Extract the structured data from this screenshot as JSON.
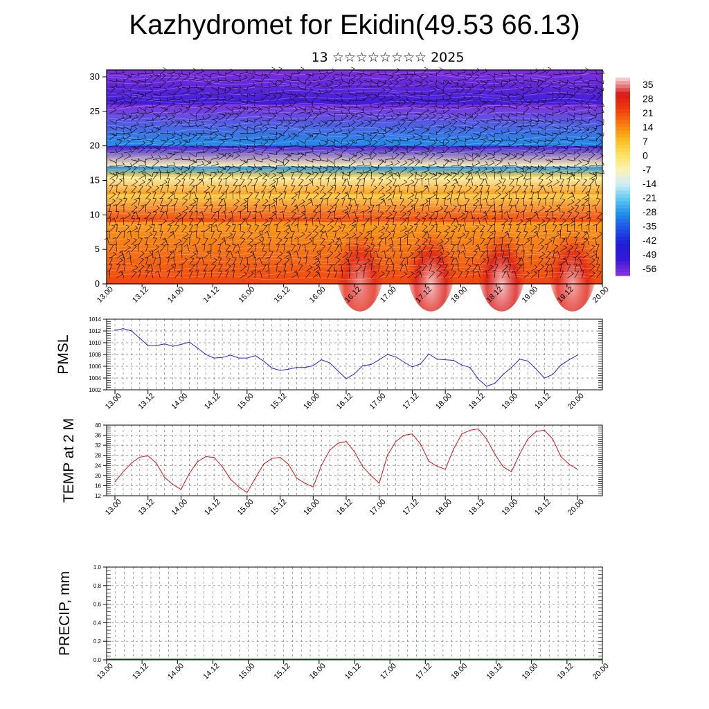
{
  "title": "Kazhydromet for Ekidin(49.53 66.13)",
  "subtitle": "13 ☆☆☆☆☆☆☆☆ 2025",
  "chart_data": [
    {
      "type": "heatmap",
      "title": "",
      "x_ticks": [
        "13.00",
        "13.12",
        "14.00",
        "14.12",
        "15.00",
        "15.12",
        "16.00",
        "16.12",
        "17.00",
        "17.12",
        "18.00",
        "18.12",
        "19.00",
        "19.12",
        "20.00"
      ],
      "y_ticks": [
        "0",
        "5",
        "10",
        "15",
        "20",
        "25",
        "30"
      ],
      "ylim": [
        0,
        31
      ],
      "colorbar_labels": [
        "35",
        "28",
        "21",
        "14",
        "7",
        "0",
        "-7",
        "-14",
        "-21",
        "-28",
        "-35",
        "-42",
        "-49",
        "-56"
      ],
      "colorbar_colors": [
        "#f4c8c8",
        "#d91818",
        "#f03c0c",
        "#fa7a10",
        "#fcb820",
        "#fde060",
        "#fef4b0",
        "#cfeef6",
        "#60c8f0",
        "#1e8fe8",
        "#1e50e8",
        "#1e1ed8",
        "#3418d8",
        "#8030e0"
      ],
      "bands": [
        {
          "y": [
            0,
            9
          ],
          "value": 20
        },
        {
          "y": [
            9,
            13
          ],
          "value": 10
        },
        {
          "y": [
            13,
            15.5
          ],
          "value": 2
        },
        {
          "y": [
            15.5,
            17
          ],
          "value": -7
        },
        {
          "y": [
            17,
            20
          ],
          "value": -28
        },
        {
          "y": [
            20,
            26
          ],
          "value": -50
        },
        {
          "y": [
            26,
            31
          ],
          "value": -58
        }
      ],
      "warm_cores": [
        {
          "x": "16.12",
          "value": 33
        },
        {
          "x": "17.12",
          "value": 35
        },
        {
          "x": "18.12",
          "value": 36
        },
        {
          "x": "19.12",
          "value": 34
        }
      ],
      "wind_barbs": true
    },
    {
      "type": "line",
      "ylabel": "PMSL",
      "color": "#2222dd",
      "x_ticks": [
        "13.00",
        "13.12",
        "14.00",
        "14.12",
        "15.00",
        "15.12",
        "16.00",
        "16.12",
        "17.00",
        "17.12",
        "18.00",
        "18.12",
        "19.00",
        "19.12",
        "20.00"
      ],
      "y_ticks": [
        "1002",
        "1004",
        "1006",
        "1008",
        "1010",
        "1012",
        "1014"
      ],
      "ylim": [
        1002,
        1014
      ],
      "grid": true,
      "values": [
        1012.1,
        1012.4,
        1012.0,
        1010.8,
        1009.5,
        1009.5,
        1009.8,
        1009.4,
        1009.7,
        1010.1,
        1009.1,
        1008.0,
        1007.4,
        1007.5,
        1007.9,
        1007.4,
        1007.4,
        1007.8,
        1006.9,
        1005.7,
        1005.3,
        1005.5,
        1005.8,
        1005.8,
        1006.1,
        1007.1,
        1006.6,
        1005.2,
        1003.9,
        1004.7,
        1006.1,
        1006.3,
        1007.1,
        1008.0,
        1007.6,
        1006.7,
        1005.9,
        1006.4,
        1008.1,
        1007.2,
        1007.1,
        1007.0,
        1006.2,
        1005.8,
        1003.8,
        1002.6,
        1003.1,
        1004.6,
        1005.8,
        1007.2,
        1006.9,
        1005.5,
        1004.0,
        1004.6,
        1006.2,
        1007.1,
        1007.9
      ]
    },
    {
      "type": "line",
      "ylabel": "TEMP at 2 M",
      "color": "#dd1111",
      "x_ticks": [
        "13.00",
        "13.12",
        "14.00",
        "14.12",
        "15.00",
        "15.12",
        "16.00",
        "16.12",
        "17.00",
        "17.12",
        "18.00",
        "18.12",
        "19.00",
        "19.12",
        "20.00"
      ],
      "y_ticks": [
        "12",
        "16",
        "20",
        "24",
        "28",
        "32",
        "36",
        "40"
      ],
      "ylim": [
        12,
        40
      ],
      "grid": true,
      "values": [
        17.5,
        21.5,
        25.0,
        27.3,
        27.8,
        25.0,
        19.3,
        16.5,
        14.5,
        20.8,
        25.5,
        27.5,
        27.2,
        23.5,
        18.5,
        15.5,
        13.3,
        19.0,
        24.5,
        26.8,
        27.2,
        24.5,
        19.0,
        17.0,
        15.5,
        24.0,
        30.0,
        32.8,
        33.5,
        29.5,
        23.5,
        20.0,
        17.0,
        28.0,
        33.5,
        36.0,
        36.5,
        32.5,
        25.7,
        23.7,
        22.5,
        30.5,
        36.5,
        38.0,
        38.5,
        34.5,
        28.5,
        23.5,
        21.5,
        28.5,
        34.5,
        37.5,
        38.0,
        34.5,
        27.5,
        24.5,
        22.5
      ]
    },
    {
      "type": "bar",
      "ylabel": "PRECIP, mm",
      "color": "#2e7d32",
      "x_ticks": [
        "13.00",
        "13.12",
        "14.00",
        "14.12",
        "15.00",
        "15.12",
        "16.00",
        "16.12",
        "17.00",
        "17.12",
        "18.00",
        "18.12",
        "19.00",
        "19.12",
        "20.00"
      ],
      "y_ticks": [
        "0.0",
        "0.2",
        "0.4",
        "0.6",
        "0.8",
        "1.0"
      ],
      "ylim": [
        0,
        1
      ],
      "grid": true,
      "values": [
        0,
        0,
        0,
        0,
        0,
        0,
        0,
        0,
        0,
        0,
        0,
        0,
        0,
        0,
        0,
        0,
        0,
        0,
        0,
        0,
        0,
        0,
        0,
        0,
        0,
        0,
        0,
        0,
        0,
        0,
        0,
        0,
        0,
        0,
        0,
        0,
        0,
        0,
        0,
        0,
        0,
        0,
        0,
        0,
        0,
        0,
        0,
        0,
        0,
        0,
        0,
        0,
        0,
        0,
        0,
        0,
        0
      ]
    }
  ]
}
